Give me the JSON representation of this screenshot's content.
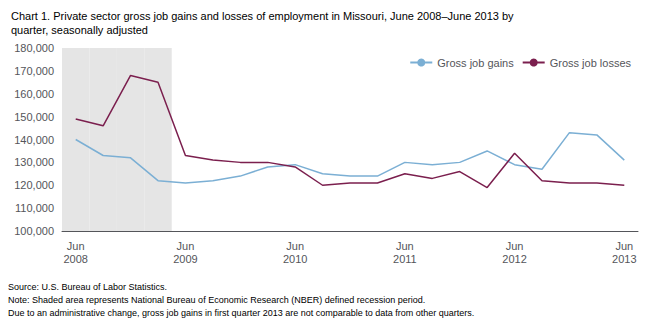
{
  "chart_data": {
    "type": "line",
    "title": "Chart 1. Private sector gross job gains and losses of employment in Missouri, June 2008–June 2013 by\nquarter, seasonally adjusted",
    "categories": [
      "Jun\n2008",
      null,
      null,
      null,
      "Jun\n2009",
      null,
      null,
      null,
      "Jun\n2010",
      null,
      null,
      null,
      "Jun\n2011",
      null,
      null,
      null,
      "Jun\n2012",
      null,
      null,
      null,
      "Jun\n2013"
    ],
    "series": [
      {
        "name": "Gross job gains",
        "color": "#7bafd4",
        "values": [
          140000,
          133000,
          132000,
          122000,
          121000,
          122000,
          124000,
          128000,
          129000,
          125000,
          124000,
          124000,
          130000,
          129000,
          130000,
          135000,
          129000,
          127000,
          143000,
          142000,
          131000
        ]
      },
      {
        "name": "Gross job losses",
        "color": "#7b1f4e",
        "values": [
          149000,
          146000,
          168000,
          165000,
          133000,
          131000,
          130000,
          130000,
          128000,
          120000,
          121000,
          121000,
          125000,
          123000,
          126000,
          119000,
          134000,
          122000,
          121000,
          121000,
          120000
        ]
      }
    ],
    "ylim": [
      100000,
      180000
    ],
    "yticks": [
      {
        "value": 100000,
        "label": "100,000"
      },
      {
        "value": 110000,
        "label": "110,000"
      },
      {
        "value": 120000,
        "label": "120,000"
      },
      {
        "value": 130000,
        "label": "130,000"
      },
      {
        "value": 140000,
        "label": "140,000"
      },
      {
        "value": 150000,
        "label": "150,000"
      },
      {
        "value": 160000,
        "label": "160,000"
      },
      {
        "value": 170000,
        "label": "170,000"
      },
      {
        "value": 180000,
        "label": "180,000"
      }
    ],
    "recession_shading": {
      "start": 0,
      "end": 4,
      "color": "#e5e5e5"
    },
    "grid": false,
    "legend": "upper right",
    "annotations": [
      "Source: U.S. Bureau of Labor Statistics.",
      "Note: Shaded area represents National Bureau of Economic Research (NBER) defined recession period.",
      "Due to an administrative change, gross job gains in first quarter 2013 are not comparable to data from other quarters."
    ]
  }
}
